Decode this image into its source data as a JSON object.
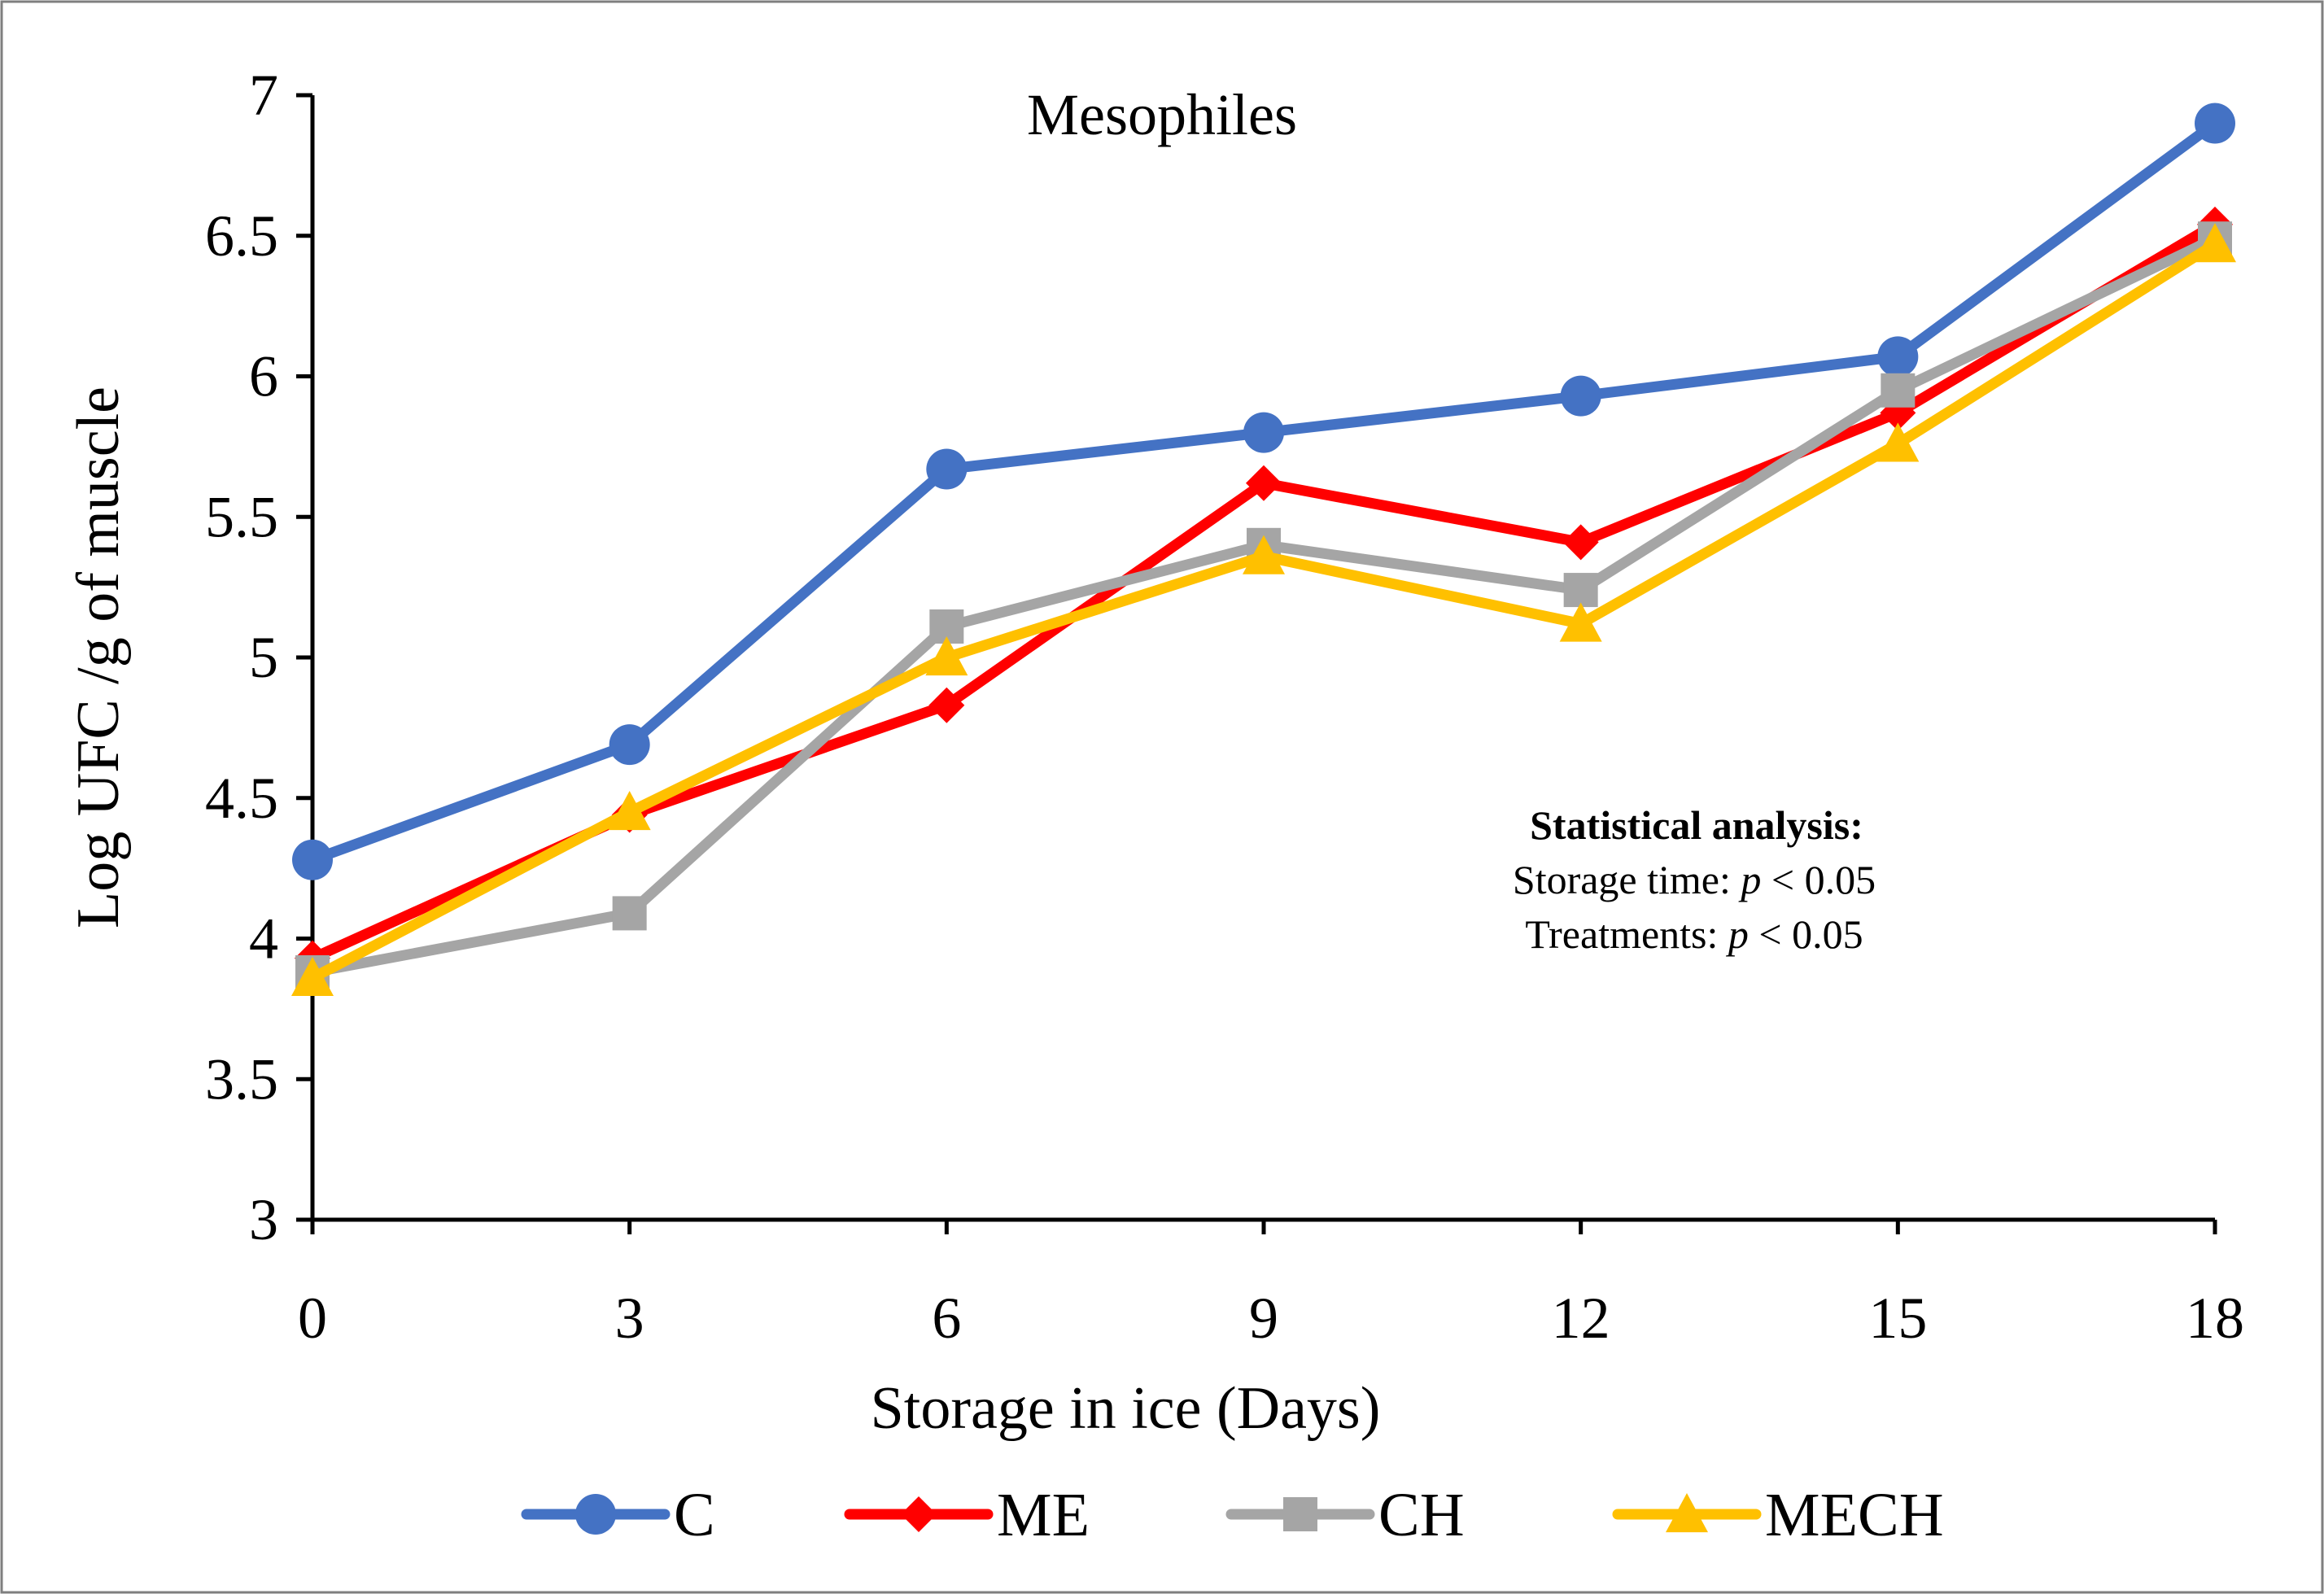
{
  "chart_data": {
    "type": "line",
    "title": "Mesophiles",
    "xlabel": "Storage in ice (Days)",
    "ylabel": "Log UFC /g  of muscle",
    "x": [
      0,
      3,
      6,
      9,
      12,
      15,
      18
    ],
    "xlim": [
      0,
      18
    ],
    "ylim": [
      3,
      7
    ],
    "yticks": [
      3,
      3.5,
      4,
      4.5,
      5,
      5.5,
      6,
      6.5,
      7
    ],
    "ytick_labels": [
      "3",
      "3.5",
      "4",
      "4.5",
      "5",
      "5.5",
      "6",
      "6.5",
      "7"
    ],
    "xtick_labels": [
      "0",
      "3",
      "6",
      "9",
      "12",
      "15",
      "18"
    ],
    "grid": false,
    "legend_position": "bottom",
    "series": [
      {
        "name": "C",
        "color": "#4472c4",
        "marker": "circle",
        "values": [
          4.28,
          4.69,
          5.67,
          5.8,
          5.93,
          6.07,
          6.9
        ]
      },
      {
        "name": "ME",
        "color": "#ff0000",
        "marker": "diamond",
        "values": [
          3.93,
          4.44,
          4.83,
          5.62,
          5.41,
          5.87,
          6.54
        ]
      },
      {
        "name": "CH",
        "color": "#a5a5a5",
        "marker": "square",
        "values": [
          3.88,
          4.09,
          5.11,
          5.4,
          5.24,
          5.95,
          6.49
        ]
      },
      {
        "name": "MECH",
        "color": "#ffc000",
        "marker": "triangle",
        "values": [
          3.86,
          4.45,
          5.0,
          5.36,
          5.12,
          5.76,
          6.47
        ]
      }
    ],
    "annotation": {
      "heading": "Statistical analysis:",
      "line1_prefix": "Storage time: ",
      "line1_var": "p",
      "line1_suffix": " < 0.05",
      "line2_prefix": "Treatments: ",
      "line2_var": "p",
      "line2_suffix": " < 0.05"
    }
  }
}
